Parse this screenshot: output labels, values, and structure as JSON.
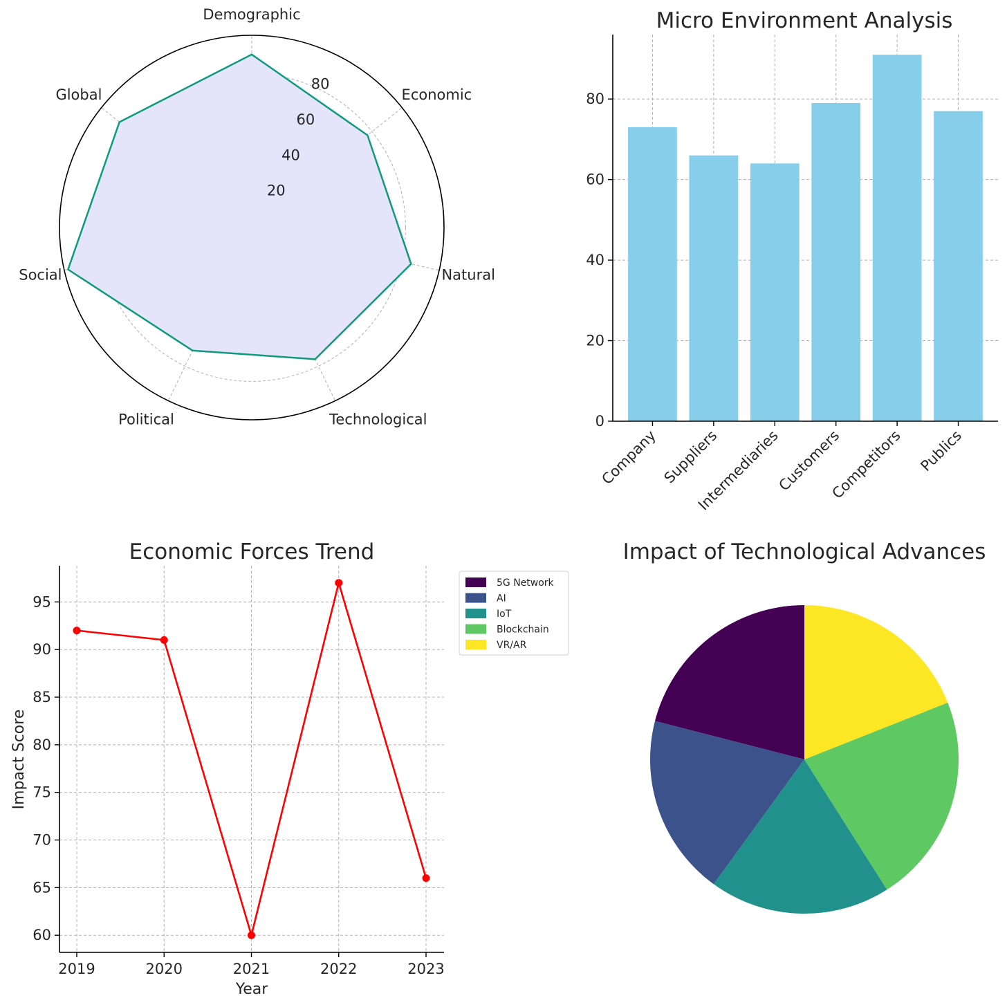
{
  "chart_data": [
    {
      "type": "radar",
      "title": "",
      "categories": [
        "Demographic",
        "Economic",
        "Natural",
        "Technological",
        "Political",
        "Social",
        "Global"
      ],
      "values": [
        90,
        77,
        85,
        76,
        71,
        98,
        88
      ],
      "rlim": [
        0,
        100
      ],
      "rticks": [
        20,
        40,
        60,
        80
      ],
      "colors": {
        "line": "#109a7c",
        "fill": "#e4e4fb"
      },
      "grid": true
    },
    {
      "type": "bar",
      "title": "Micro Environment Analysis",
      "categories": [
        "Company",
        "Suppliers",
        "Intermediaries",
        "Customers",
        "Competitors",
        "Publics"
      ],
      "values": [
        73,
        66,
        64,
        79,
        91,
        77
      ],
      "ylim": [
        0,
        96
      ],
      "yticks": [
        0,
        20,
        40,
        60,
        80
      ],
      "xlabel": "",
      "ylabel": "",
      "colors": {
        "bar": "#87ceeb"
      },
      "grid": true
    },
    {
      "type": "line",
      "title": "Economic Forces Trend",
      "x": [
        2019,
        2020,
        2021,
        2022,
        2023
      ],
      "y": [
        92,
        91,
        60,
        97,
        66
      ],
      "xlabel": "Year",
      "ylabel": "Impact Score",
      "ylim": [
        58.2,
        98.8
      ],
      "yticks": [
        60,
        65,
        70,
        75,
        80,
        85,
        90,
        95
      ],
      "colors": {
        "line": "#ff0000"
      },
      "grid": true
    },
    {
      "type": "pie",
      "title": "Impact of Technological Advances",
      "labels": [
        "5G Network",
        "AI",
        "IoT",
        "Blockchain",
        "VR/AR"
      ],
      "values": [
        21,
        19,
        19,
        22,
        19
      ],
      "colors": [
        "#440154",
        "#3b528b",
        "#21918c",
        "#5ec962",
        "#fde725"
      ],
      "legend": "upper-left outside"
    }
  ]
}
